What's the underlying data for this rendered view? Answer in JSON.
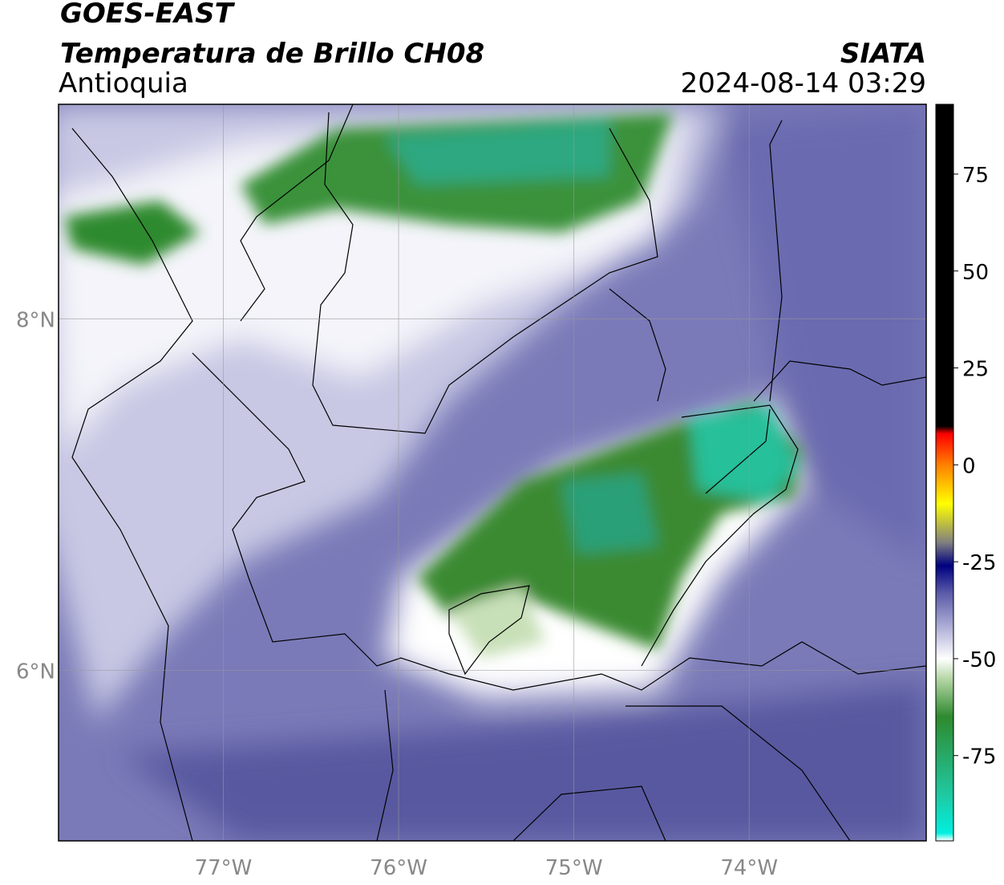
{
  "header": {
    "satellite": "GOES-EAST",
    "product": "Temperatura de Brillo CH08",
    "region": "Antioquia",
    "source": "SIATA",
    "datetime": "2024-08-14 03:29"
  },
  "map": {
    "xlim": [
      -77.94,
      -72.99
    ],
    "ylim": [
      5.03,
      9.22
    ],
    "xticks": [
      {
        "value": -77,
        "label": "77°W"
      },
      {
        "value": -76,
        "label": "76°W"
      },
      {
        "value": -75,
        "label": "75°W"
      },
      {
        "value": -74,
        "label": "74°W"
      }
    ],
    "yticks": [
      {
        "value": 6,
        "label": "6°N"
      },
      {
        "value": 8,
        "label": "8°N"
      }
    ],
    "grid": true
  },
  "colorbar": {
    "clim": [
      -97,
      93
    ],
    "ticks": [
      75,
      50,
      25,
      0,
      -25,
      -50,
      -75
    ],
    "stops": [
      {
        "value": -97,
        "color": "#ffffff"
      },
      {
        "value": -95,
        "color": "#00f0e0"
      },
      {
        "value": -85,
        "color": "#20c8a0"
      },
      {
        "value": -65,
        "color": "#2e8a2e"
      },
      {
        "value": -55,
        "color": "#b8d8a8"
      },
      {
        "value": -50,
        "color": "#ffffff"
      },
      {
        "value": -42,
        "color": "#b0b0d8"
      },
      {
        "value": -33,
        "color": "#5a5aa8"
      },
      {
        "value": -26,
        "color": "#000080"
      },
      {
        "value": -20,
        "color": "#808080"
      },
      {
        "value": -10,
        "color": "#ffff00"
      },
      {
        "value": 0,
        "color": "#ff8000"
      },
      {
        "value": 8,
        "color": "#ff0000"
      },
      {
        "value": 10,
        "color": "#000000"
      },
      {
        "value": 93,
        "color": "#000000"
      }
    ]
  }
}
